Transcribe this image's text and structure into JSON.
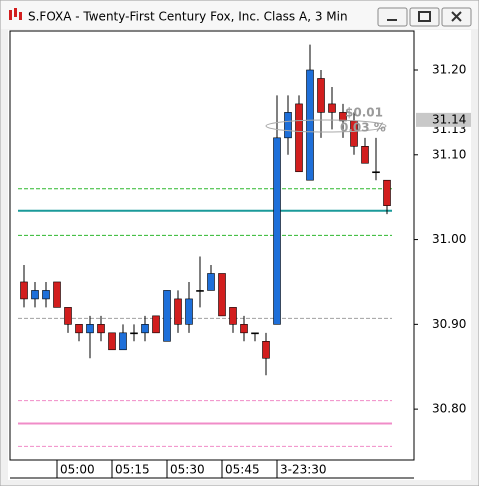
{
  "chart_data": {
    "type": "candlestick",
    "title": "S.FOXA - Twenty-First Century Fox, Inc. Class A, 3 Min",
    "categories": [
      null,
      null,
      null,
      "05:00",
      null,
      null,
      null,
      null,
      "05:15",
      null,
      null,
      null,
      null,
      "05:30",
      null,
      null,
      null,
      null,
      "05:45",
      null,
      null,
      null,
      null,
      "3-23:30",
      null,
      null,
      null,
      null,
      null,
      null,
      null,
      null,
      null,
      null
    ],
    "open": [
      30.95,
      30.93,
      30.93,
      30.95,
      30.92,
      30.9,
      30.89,
      30.9,
      30.89,
      30.87,
      30.89,
      30.89,
      30.91,
      30.88,
      30.93,
      30.9,
      30.94,
      30.94,
      30.96,
      30.92,
      30.9,
      30.89,
      30.88,
      30.9,
      31.12,
      31.16,
      31.07,
      31.19,
      31.16,
      31.15,
      31.14,
      31.11,
      31.08,
      31.07
    ],
    "high": [
      30.97,
      30.95,
      30.95,
      30.95,
      30.92,
      30.9,
      30.91,
      30.91,
      30.89,
      30.9,
      30.9,
      30.91,
      30.91,
      30.94,
      30.94,
      30.95,
      30.98,
      30.97,
      30.96,
      30.92,
      30.91,
      30.89,
      30.89,
      31.17,
      31.17,
      31.17,
      31.23,
      31.2,
      31.18,
      31.16,
      31.15,
      31.12,
      31.12,
      31.07
    ],
    "low": [
      30.92,
      30.92,
      30.92,
      30.92,
      30.89,
      30.88,
      30.86,
      30.88,
      30.87,
      30.87,
      30.88,
      30.88,
      30.89,
      30.88,
      30.89,
      30.89,
      30.92,
      30.94,
      30.91,
      30.89,
      30.88,
      30.88,
      30.84,
      30.9,
      31.1,
      31.08,
      31.07,
      31.12,
      31.13,
      31.12,
      31.1,
      31.09,
      31.07,
      31.03
    ],
    "close": [
      30.93,
      30.94,
      30.94,
      30.92,
      30.9,
      30.89,
      30.9,
      30.89,
      30.87,
      30.89,
      30.89,
      30.9,
      30.89,
      30.94,
      30.9,
      30.93,
      30.94,
      30.96,
      30.91,
      30.9,
      30.89,
      30.89,
      30.86,
      31.12,
      31.15,
      31.08,
      31.2,
      31.15,
      31.15,
      31.14,
      31.11,
      31.09,
      31.08,
      31.04
    ],
    "up_color": "#1e6fd9",
    "down_color": "#d21e1e",
    "flat_color": "#000000",
    "ylim": [
      30.74,
      31.246
    ],
    "yticks": [
      {
        "value": 30.8,
        "label": "30.80"
      },
      {
        "value": 30.9,
        "label": "30.90"
      },
      {
        "value": 31.0,
        "label": "31.00"
      },
      {
        "value": 31.1,
        "label": "31.10"
      },
      {
        "value": 31.2,
        "label": "31.20"
      }
    ],
    "levels": [
      {
        "value": 31.06,
        "color": "#2eb82e",
        "style": "dashed"
      },
      {
        "value": 31.034,
        "color": "#1a9a9a",
        "style": "solid"
      },
      {
        "value": 31.005,
        "color": "#2eb82e",
        "style": "dashed"
      },
      {
        "value": 30.907,
        "color": "#a0a0a0",
        "style": "dashed"
      },
      {
        "value": 30.81,
        "color": "#f08cc8",
        "style": "dashed"
      },
      {
        "value": 30.783,
        "color": "#f08cc8",
        "style": "solid"
      },
      {
        "value": 30.756,
        "color": "#f08cc8",
        "style": "dashed"
      }
    ],
    "bid_label": {
      "value": 31.13,
      "label": "31.13"
    },
    "last_label": {
      "value": 31.14,
      "label": "31.14"
    },
    "annotations": [
      "$0.01",
      "0.03 %"
    ]
  }
}
